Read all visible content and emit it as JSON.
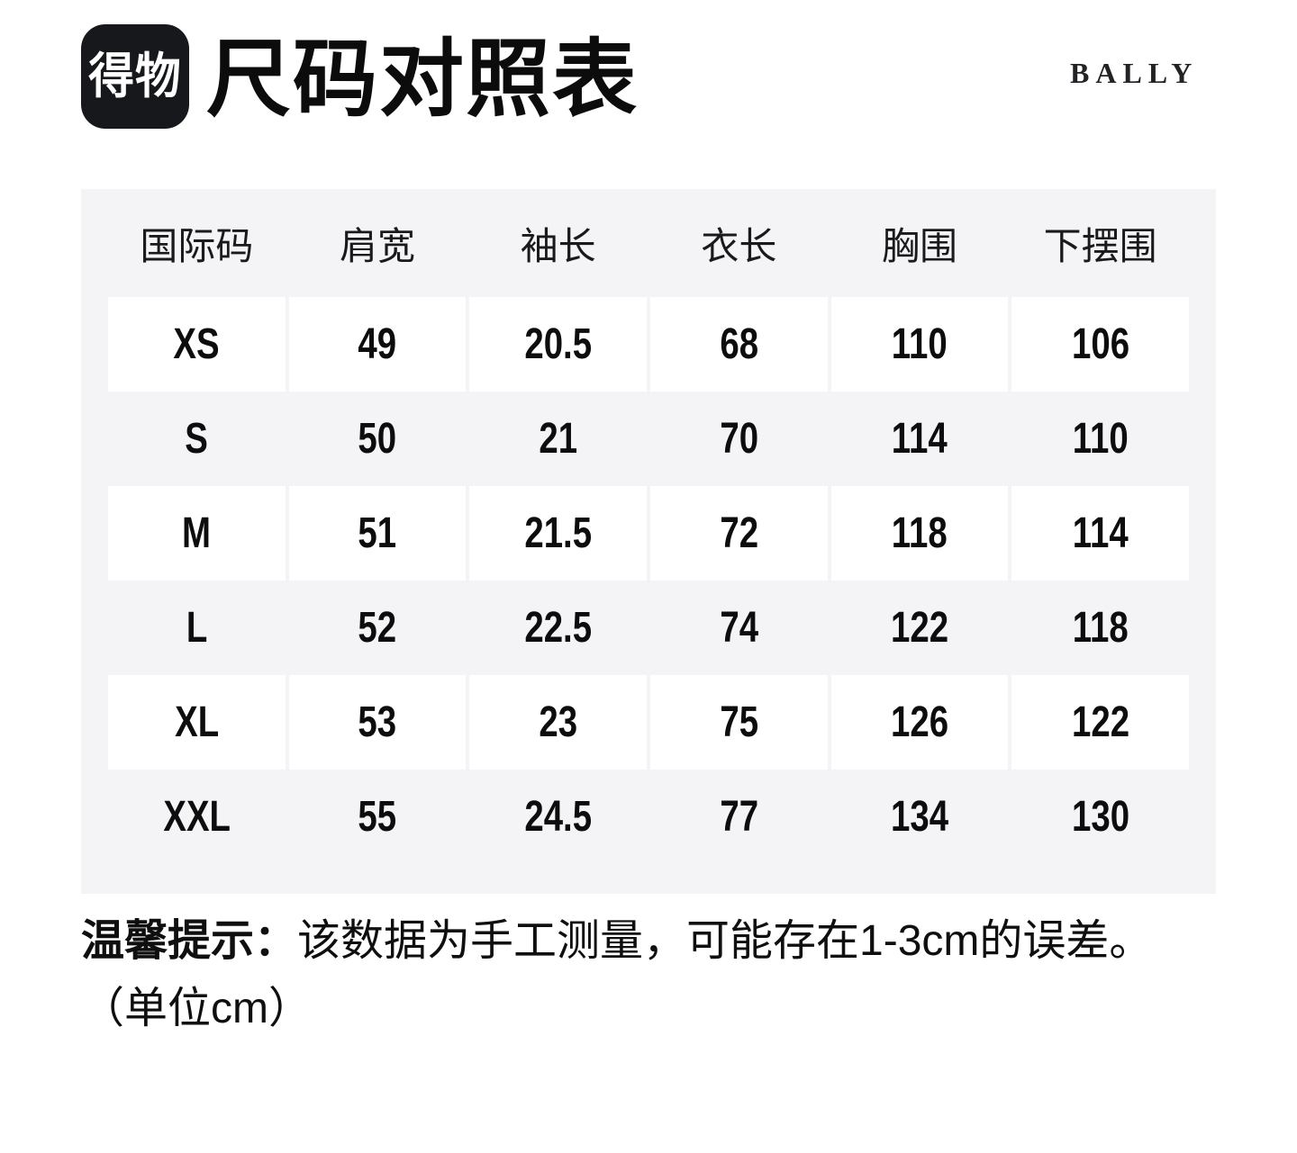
{
  "header": {
    "logo_text": "得物",
    "title": "尺码对照表",
    "brand": "BALLY"
  },
  "table": {
    "columns": [
      "国际码",
      "肩宽",
      "袖长",
      "衣长",
      "胸围",
      "下摆围"
    ],
    "rows": [
      {
        "size": "XS",
        "values": [
          "49",
          "20.5",
          "68",
          "110",
          "106"
        ]
      },
      {
        "size": "S",
        "values": [
          "50",
          "21",
          "70",
          "114",
          "110"
        ]
      },
      {
        "size": "M",
        "values": [
          "51",
          "21.5",
          "72",
          "118",
          "114"
        ]
      },
      {
        "size": "L",
        "values": [
          "52",
          "22.5",
          "74",
          "122",
          "118"
        ]
      },
      {
        "size": "XL",
        "values": [
          "53",
          "23",
          "75",
          "126",
          "122"
        ]
      },
      {
        "size": "XXL",
        "values": [
          "55",
          "24.5",
          "77",
          "134",
          "130"
        ]
      }
    ]
  },
  "footnote": {
    "label": "温馨提示：",
    "text": "该数据为手工测量，可能存在1-3cm的误差。",
    "unit_line": "（单位cm）"
  },
  "colors": {
    "page_bg": "#ffffff",
    "table_bg": "#f4f4f6",
    "cell_bg": "#ffffff",
    "text": "#0d0d0e",
    "logo_bg": "#16181c",
    "logo_fg": "#ffffff",
    "brand_color": "#232327"
  }
}
